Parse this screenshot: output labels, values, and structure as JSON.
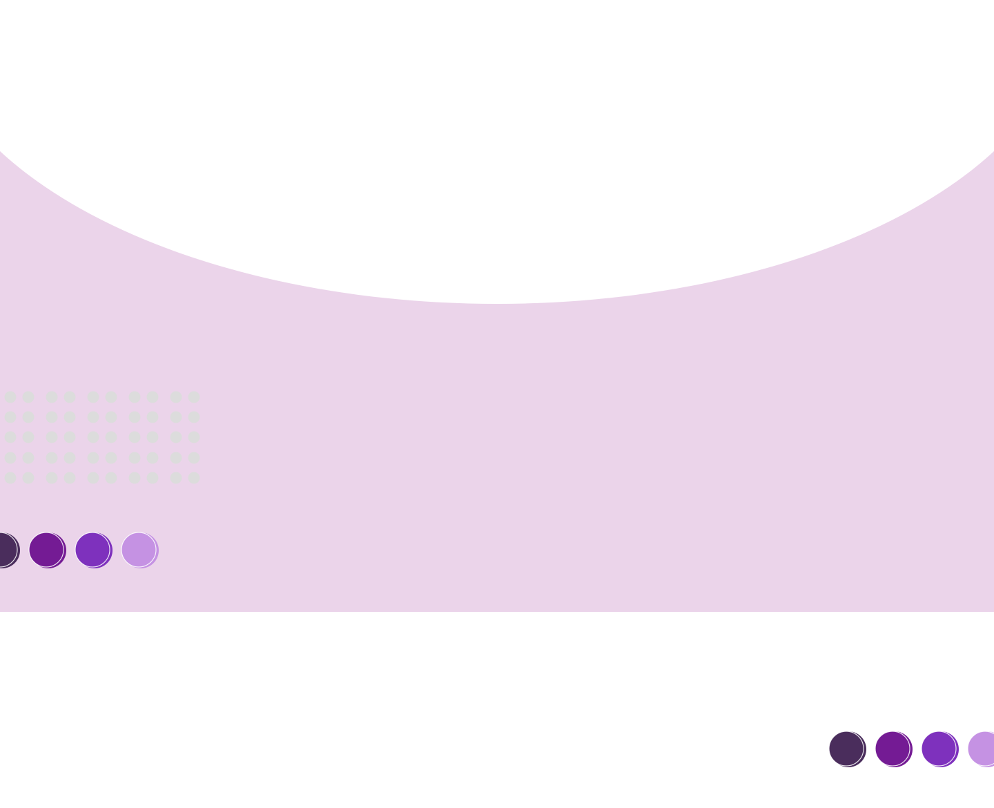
{
  "colors": {
    "background": "#ffffff",
    "band": "#ebd4ea",
    "grid_dot": "#dcdcdc",
    "palette": [
      "#4a2d5c",
      "#741b94",
      "#7e31bd",
      "#c592e3"
    ]
  },
  "decor": {
    "top_shape": "white-elliptical-arc",
    "dot_grid": "light-gray-dot-matrix",
    "circle_rows": [
      "palette-swatch-row-left",
      "palette-swatch-row-right"
    ]
  }
}
